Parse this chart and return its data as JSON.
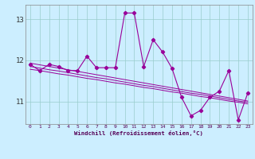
{
  "x": [
    0,
    1,
    2,
    3,
    4,
    5,
    6,
    7,
    8,
    9,
    10,
    11,
    12,
    13,
    14,
    15,
    16,
    17,
    18,
    19,
    20,
    21,
    22,
    23
  ],
  "y_main": [
    11.9,
    11.75,
    11.9,
    11.85,
    11.75,
    11.75,
    12.1,
    11.82,
    11.82,
    11.82,
    13.15,
    13.15,
    11.85,
    12.5,
    12.2,
    11.8,
    11.1,
    10.65,
    10.78,
    11.1,
    11.25,
    11.75,
    10.55,
    11.2
  ],
  "y_trend1": [
    11.93,
    11.89,
    11.85,
    11.81,
    11.77,
    11.73,
    11.69,
    11.65,
    11.61,
    11.57,
    11.53,
    11.49,
    11.45,
    11.41,
    11.37,
    11.33,
    11.29,
    11.25,
    11.21,
    11.17,
    11.13,
    11.09,
    11.05,
    11.01
  ],
  "y_trend2": [
    11.85,
    11.81,
    11.77,
    11.74,
    11.7,
    11.66,
    11.62,
    11.58,
    11.55,
    11.51,
    11.47,
    11.43,
    11.39,
    11.36,
    11.32,
    11.28,
    11.24,
    11.2,
    11.17,
    11.13,
    11.09,
    11.05,
    11.01,
    10.98
  ],
  "y_trend3": [
    11.78,
    11.75,
    11.71,
    11.67,
    11.64,
    11.6,
    11.56,
    11.53,
    11.49,
    11.45,
    11.42,
    11.38,
    11.34,
    11.31,
    11.27,
    11.23,
    11.2,
    11.16,
    11.12,
    11.09,
    11.05,
    11.01,
    10.98,
    10.94
  ],
  "color": "#990099",
  "bg_color": "#cceeff",
  "grid_color": "#99cccc",
  "xlabel": "Windchill (Refroidissement éolien,°C)",
  "ylim": [
    10.45,
    13.35
  ],
  "yticks": [
    11,
    12,
    13
  ],
  "xlim": [
    -0.5,
    23.5
  ]
}
